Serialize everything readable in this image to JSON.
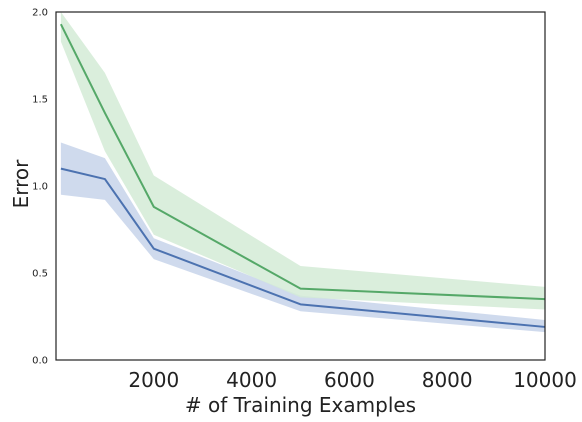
{
  "chart_data": {
    "type": "line",
    "title": "",
    "xlabel": "# of Training Examples",
    "ylabel": "Error",
    "xlim": [
      0,
      10000
    ],
    "ylim": [
      0,
      2.0
    ],
    "x_ticks": [
      2000,
      4000,
      6000,
      8000,
      10000
    ],
    "y_ticks": [
      0.0,
      0.5,
      1.0,
      1.5,
      2.0
    ],
    "x_tick_labels": [
      "2000",
      "4000",
      "6000",
      "8000",
      "10000"
    ],
    "y_tick_labels": [
      "0.0",
      "0.5",
      "1.0",
      "1.5",
      "2.0"
    ],
    "grid": false,
    "x": [
      100,
      1000,
      2000,
      5000,
      10000
    ],
    "series": [
      {
        "color": "#4c72b0",
        "band_color": "#c7d3ea",
        "values": [
          1.1,
          1.04,
          0.64,
          0.32,
          0.19
        ],
        "lower": [
          0.95,
          0.92,
          0.58,
          0.28,
          0.16
        ],
        "upper": [
          1.25,
          1.16,
          0.7,
          0.37,
          0.23
        ]
      },
      {
        "color": "#55a868",
        "band_color": "#d3ebd6",
        "values": [
          1.93,
          1.42,
          0.88,
          0.41,
          0.35
        ],
        "lower": [
          1.83,
          1.2,
          0.72,
          0.36,
          0.29
        ],
        "upper": [
          2.0,
          1.65,
          1.06,
          0.54,
          0.42
        ]
      }
    ]
  }
}
